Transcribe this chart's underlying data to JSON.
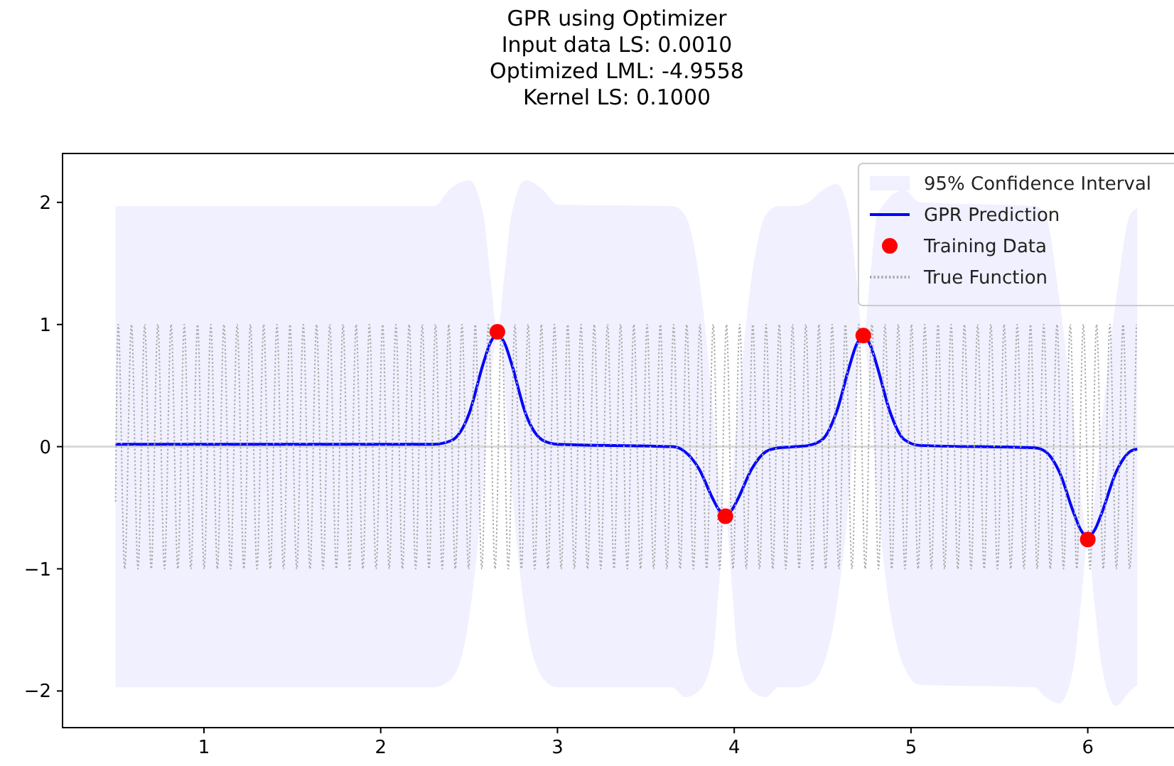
{
  "chart_data": {
    "type": "line",
    "title": "GPR using Optimizer\nInput data LS: 0.0010\nOptimized LML: -4.9558\nKernel LS: 0.1000",
    "annotations": [
      "95% Confidence Interval"
    ],
    "xlim": [
      0.2,
      6.52
    ],
    "xticks": [
      1,
      2,
      3,
      4,
      5,
      6
    ],
    "ylim": [
      -2.3,
      2.4
    ],
    "yticks": [
      {
        "value": -2,
        "label": "−2"
      },
      {
        "value": -1,
        "label": "−1"
      },
      0,
      1,
      2
    ],
    "legend": "top right",
    "ref_lines": [
      {
        "axis": "y",
        "value": 0,
        "color": "#d9d9d9"
      }
    ],
    "series": [
      {
        "type": "line",
        "name": "GPR Prediction",
        "color": "#0000ff",
        "x": [
          0.5,
          2.3,
          2.4,
          2.5,
          2.58,
          2.62,
          2.66,
          2.7,
          2.74,
          2.82,
          2.92,
          3.0,
          3.65,
          3.72,
          3.8,
          3.88,
          3.91,
          3.95,
          3.99,
          4.02,
          4.1,
          4.18,
          4.25,
          4.35,
          4.42,
          4.5,
          4.58,
          4.65,
          4.69,
          4.73,
          4.77,
          4.81,
          4.88,
          4.96,
          5.05,
          5.7,
          5.76,
          5.84,
          5.92,
          5.96,
          6.0,
          6.04,
          6.08,
          6.16,
          6.24,
          6.28
        ],
        "values": [
          0.02,
          0.02,
          0.05,
          0.27,
          0.68,
          0.85,
          0.92,
          0.85,
          0.68,
          0.27,
          0.05,
          0.02,
          0.0,
          -0.04,
          -0.18,
          -0.43,
          -0.51,
          -0.55,
          -0.51,
          -0.43,
          -0.18,
          -0.04,
          -0.01,
          0.0,
          0.01,
          0.06,
          0.29,
          0.65,
          0.83,
          0.9,
          0.83,
          0.65,
          0.29,
          0.06,
          0.01,
          -0.01,
          -0.04,
          -0.21,
          -0.54,
          -0.68,
          -0.74,
          -0.68,
          -0.54,
          -0.21,
          -0.04,
          -0.02
        ],
        "upper": [
          1.97,
          1.97,
          2.12,
          2.18,
          1.9,
          1.4,
          0.94,
          1.4,
          1.9,
          2.18,
          2.1,
          1.98,
          1.97,
          1.9,
          1.4,
          0.3,
          -0.2,
          -0.55,
          -0.2,
          0.3,
          1.4,
          1.9,
          1.97,
          1.97,
          2.0,
          2.1,
          2.15,
          1.9,
          1.4,
          0.9,
          1.4,
          1.9,
          null,
          2.1,
          2.0,
          1.97,
          1.9,
          1.2,
          0.2,
          -0.4,
          -0.74,
          -0.4,
          0.2,
          1.2,
          1.9,
          1.95
        ],
        "lower": [
          -1.97,
          -1.97,
          -1.9,
          -1.4,
          -0.3,
          0.5,
          0.9,
          0.5,
          -0.3,
          -1.4,
          -1.9,
          -1.97,
          -1.97,
          -2.05,
          -2.0,
          -1.7,
          -1.2,
          -0.58,
          -1.2,
          -1.7,
          -2.0,
          -2.05,
          -1.97,
          -1.97,
          -1.95,
          -1.8,
          -1.3,
          -0.4,
          0.4,
          0.88,
          0.4,
          -0.4,
          null,
          -1.8,
          -1.95,
          -1.97,
          -2.05,
          -2.1,
          -1.8,
          -1.3,
          -0.78,
          -1.3,
          -1.8,
          -2.12,
          -2.0,
          -1.95
        ]
      },
      {
        "type": "scatter",
        "name": "Training Data",
        "color": "#ff0000",
        "x": [
          2.66,
          3.95,
          4.73,
          6.0
        ],
        "values": [
          0.94,
          -0.57,
          0.91,
          -0.76
        ]
      },
      {
        "type": "line",
        "name": "True Function",
        "color": "#a9a9a9",
        "line_style": "dotted",
        "x": [
          0.5,
          0.515,
          0.552,
          0.59,
          0.627,
          0.665,
          0.702,
          0.739,
          0.777,
          0.814,
          0.852,
          0.889,
          0.926,
          0.964,
          1.001,
          1.039,
          1.076,
          1.113,
          1.151,
          1.188,
          1.226,
          1.263,
          1.3,
          1.338,
          1.375,
          1.413,
          1.45,
          1.487,
          1.525,
          1.562,
          1.6,
          1.637,
          1.674,
          1.712,
          1.749,
          1.787,
          1.824,
          1.861,
          1.899,
          1.936,
          1.974,
          2.011,
          2.048,
          2.086,
          2.123,
          2.161,
          2.198,
          2.235,
          2.273,
          2.31,
          2.348,
          2.385,
          2.422,
          2.46,
          2.497,
          2.535,
          2.572,
          2.609,
          2.647,
          2.684,
          2.722,
          2.759,
          2.796,
          2.834,
          2.871,
          2.909,
          2.946,
          2.983,
          3.021,
          3.058,
          3.096,
          3.133,
          3.17,
          3.208,
          3.245,
          3.283,
          3.32,
          3.357,
          3.395,
          3.432,
          3.47,
          3.507,
          3.544,
          3.582,
          3.619,
          3.657,
          3.694,
          3.731,
          3.769,
          3.806,
          3.844,
          3.881,
          3.918,
          3.956,
          3.993,
          4.031,
          4.068,
          4.105,
          4.143,
          4.18,
          4.218,
          4.255,
          4.292,
          4.33,
          4.367,
          4.405,
          4.442,
          4.479,
          4.517,
          4.554,
          4.592,
          4.629,
          4.666,
          4.704,
          4.741,
          4.779,
          4.816,
          4.853,
          4.891,
          4.928,
          4.966,
          5.003,
          5.04,
          5.078,
          5.115,
          5.153,
          5.19,
          5.227,
          5.265,
          5.302,
          5.34,
          5.377,
          5.414,
          5.452,
          5.489,
          5.527,
          5.564,
          5.601,
          5.639,
          5.676,
          5.714,
          5.751,
          5.788,
          5.826,
          5.863,
          5.901,
          5.938,
          5.975,
          6.013,
          6.05,
          6.088,
          6.125,
          6.162,
          6.2,
          6.237,
          6.275
        ],
        "values": [
          -0.45,
          1,
          -1,
          1,
          -1,
          1,
          -1,
          1,
          -1,
          1,
          -1,
          1,
          -1,
          1,
          -1,
          1,
          -1,
          1,
          -1,
          1,
          -1,
          1,
          -1,
          1,
          -1,
          1,
          -1,
          1,
          -1,
          1,
          -1,
          1,
          -1,
          1,
          -1,
          1,
          -1,
          1,
          -1,
          1,
          -1,
          1,
          -1,
          1,
          -1,
          1,
          -1,
          1,
          -1,
          1,
          -1,
          1,
          -1,
          1,
          -1,
          1,
          -1,
          1,
          -1,
          1,
          -1,
          1,
          -1,
          1,
          -1,
          1,
          -1,
          1,
          -1,
          1,
          -1,
          1,
          -1,
          1,
          -1,
          1,
          -1,
          1,
          -1,
          1,
          -1,
          1,
          -1,
          1,
          -1,
          1,
          -1,
          1,
          -1,
          1,
          -1,
          1,
          -1,
          1,
          -1,
          1,
          -1,
          1,
          -1,
          1,
          -1,
          1,
          -1,
          1,
          -1,
          1,
          -1,
          1,
          -1,
          1,
          -1,
          1,
          -1,
          1,
          -1,
          1,
          -1,
          1,
          -1,
          1,
          -1,
          1,
          -1,
          1,
          -1,
          1,
          -1,
          1,
          -1,
          1,
          -1,
          1,
          -1,
          1,
          -1,
          1,
          -1,
          1,
          -1,
          1,
          -1,
          1,
          -1,
          1,
          -1,
          1,
          -1,
          1,
          -1,
          1,
          -1,
          1,
          -1,
          1,
          -1,
          1
        ]
      }
    ]
  }
}
